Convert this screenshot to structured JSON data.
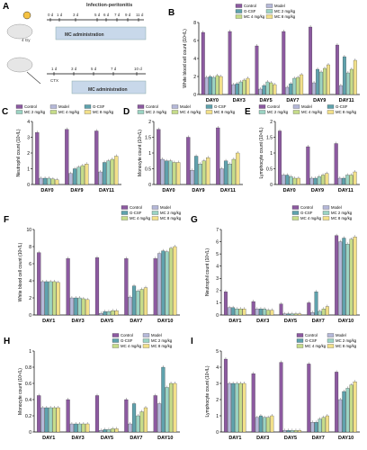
{
  "colors": {
    "control": "#8c5aa0",
    "model": "#b5b8d8",
    "gcsf": "#5fa2ad",
    "mc2": "#9bd3c3",
    "mc4": "#c6dc8a",
    "mc8": "#f2e08a",
    "red_text": "#e23a2c",
    "axis": "#000000",
    "mouse": "#e6e6e6",
    "cage": "#c8d8ea"
  },
  "groups": [
    "Control",
    "Model",
    "G-CSF",
    "MC 2 mg/kg",
    "MC 4 mg/kg",
    "MC 8 mg/kg"
  ],
  "schematic": {
    "title": "Infection-peritonitis",
    "dose_top": "4 Gy",
    "cage_text_top": "MC administration",
    "cage_text_bottom": "MC administration",
    "cs_label": "CTX",
    "top_days": [
      "0 d",
      "1 d",
      "3 d",
      "5 d",
      "6 d",
      "7 d",
      "9 d",
      "11 d"
    ],
    "bottom_days": [
      "1 d",
      "3 d",
      "5 d",
      "7 d",
      "10 d"
    ]
  },
  "chart_data": [
    {
      "panel": "A",
      "type": "diagram"
    },
    {
      "panel": "B",
      "type": "bar",
      "ylabel": "White blood cell count (10⁹/L)",
      "categories": [
        "DAY0",
        "DAY3",
        "DAY5",
        "DAY7",
        "DAY9",
        "DAY11"
      ],
      "yticks": [
        0,
        2,
        4,
        6,
        8
      ],
      "ylim": [
        0,
        8
      ],
      "series": [
        {
          "name": "Control",
          "values": [
            6.9,
            7.0,
            5.4,
            7.0,
            7.5,
            5.5
          ]
        },
        {
          "name": "Model",
          "values": [
            1.9,
            1.1,
            0.6,
            0.8,
            1.3,
            1.0
          ]
        },
        {
          "name": "G-CSF",
          "values": [
            2.0,
            1.2,
            1.0,
            1.2,
            2.8,
            4.2
          ]
        },
        {
          "name": "MC 2 mg/kg",
          "values": [
            1.9,
            1.4,
            1.4,
            1.8,
            2.5,
            2.4
          ]
        },
        {
          "name": "MC 4 mg/kg",
          "values": [
            2.1,
            1.6,
            1.3,
            1.9,
            2.9,
            2.8
          ]
        },
        {
          "name": "MC 8 mg/kg",
          "values": [
            2.0,
            1.8,
            1.1,
            2.2,
            3.3,
            3.8
          ]
        }
      ]
    },
    {
      "panel": "C",
      "type": "bar",
      "ylabel": "Neutrophil count (10⁹/L)",
      "categories": [
        "DAY0",
        "DAY9",
        "DAY11"
      ],
      "yticks": [
        0,
        1,
        2,
        3,
        4
      ],
      "ylim": [
        0,
        4
      ],
      "series": [
        {
          "name": "Control",
          "values": [
            3.3,
            3.5,
            3.4
          ]
        },
        {
          "name": "Model",
          "values": [
            0.4,
            0.7,
            0.8
          ]
        },
        {
          "name": "G-CSF",
          "values": [
            0.4,
            1.0,
            1.4
          ]
        },
        {
          "name": "MC 2 mg/kg",
          "values": [
            0.4,
            1.1,
            1.5
          ]
        },
        {
          "name": "MC 4 mg/kg",
          "values": [
            0.35,
            1.2,
            1.6
          ]
        },
        {
          "name": "MC 8 mg/kg",
          "values": [
            0.3,
            1.3,
            1.8
          ]
        }
      ]
    },
    {
      "panel": "D",
      "type": "bar",
      "ylabel": "Monocyte count (10⁹/L)",
      "categories": [
        "DAY0",
        "DAY9",
        "DAY11"
      ],
      "yticks": [
        0.0,
        0.5,
        1.0,
        1.5,
        2.0
      ],
      "ylim": [
        0,
        2
      ],
      "series": [
        {
          "name": "Control",
          "values": [
            1.75,
            1.5,
            1.8
          ]
        },
        {
          "name": "Model",
          "values": [
            0.8,
            0.45,
            0.5
          ]
        },
        {
          "name": "G-CSF",
          "values": [
            0.75,
            0.9,
            0.75
          ]
        },
        {
          "name": "MC 2 mg/kg",
          "values": [
            0.75,
            0.65,
            0.65
          ]
        },
        {
          "name": "MC 4 mg/kg",
          "values": [
            0.7,
            0.75,
            0.8
          ]
        },
        {
          "name": "MC 8 mg/kg",
          "values": [
            0.7,
            0.85,
            1.0
          ]
        }
      ]
    },
    {
      "panel": "E",
      "type": "bar",
      "ylabel": "Lymphocyte count (10⁹/L)",
      "categories": [
        "DAY0",
        "DAY9",
        "DAY11"
      ],
      "yticks": [
        0.0,
        0.5,
        1.0,
        1.5,
        2.0
      ],
      "ylim": [
        0,
        2
      ],
      "series": [
        {
          "name": "Control",
          "values": [
            1.7,
            1.2,
            1.3
          ]
        },
        {
          "name": "Model",
          "values": [
            0.3,
            0.2,
            0.2
          ]
        },
        {
          "name": "G-CSF",
          "values": [
            0.3,
            0.2,
            0.2
          ]
        },
        {
          "name": "MC 2 mg/kg",
          "values": [
            0.25,
            0.25,
            0.3
          ]
        },
        {
          "name": "MC 4 mg/kg",
          "values": [
            0.2,
            0.3,
            0.3
          ]
        },
        {
          "name": "MC 8 mg/kg",
          "values": [
            0.2,
            0.35,
            0.4
          ]
        }
      ]
    },
    {
      "panel": "F",
      "type": "bar",
      "ylabel": "White blood cell count (10⁹/L)",
      "categories": [
        "DAY1",
        "DAY3",
        "DAY5",
        "DAY7",
        "DAY10"
      ],
      "yticks": [
        0,
        2,
        4,
        6,
        8,
        10
      ],
      "ylim": [
        0,
        10
      ],
      "series": [
        {
          "name": "Control",
          "values": [
            7.3,
            6.6,
            6.7,
            6.6,
            6.6
          ]
        },
        {
          "name": "Model",
          "values": [
            3.9,
            2.0,
            0.2,
            2.1,
            7.2
          ]
        },
        {
          "name": "G-CSF",
          "values": [
            3.9,
            2.0,
            0.4,
            3.4,
            7.5
          ]
        },
        {
          "name": "MC 2 mg/kg",
          "values": [
            3.9,
            2.0,
            0.4,
            2.8,
            7.4
          ]
        },
        {
          "name": "MC 4 mg/kg",
          "values": [
            3.9,
            1.9,
            0.5,
            3.0,
            7.8
          ]
        },
        {
          "name": "MC 8 mg/kg",
          "values": [
            3.8,
            1.8,
            0.5,
            3.2,
            8.0
          ]
        }
      ]
    },
    {
      "panel": "G",
      "type": "bar",
      "ylabel": "Neutrophil count (10⁹/L)",
      "categories": [
        "DAY1",
        "DAY3",
        "DAY5",
        "DAY7",
        "DAY10"
      ],
      "yticks": [
        0,
        1,
        2,
        3,
        4,
        5,
        6,
        7
      ],
      "ylim": [
        0,
        7
      ],
      "series": [
        {
          "name": "Control",
          "values": [
            1.9,
            1.1,
            0.9,
            1.0,
            6.5
          ]
        },
        {
          "name": "Model",
          "values": [
            0.6,
            0.5,
            0.1,
            0.2,
            6.0
          ]
        },
        {
          "name": "G-CSF",
          "values": [
            0.6,
            0.5,
            0.1,
            1.9,
            6.3
          ]
        },
        {
          "name": "MC 2 mg/kg",
          "values": [
            0.5,
            0.5,
            0.1,
            0.3,
            5.8
          ]
        },
        {
          "name": "MC 4 mg/kg",
          "values": [
            0.5,
            0.4,
            0.1,
            0.5,
            6.2
          ]
        },
        {
          "name": "MC 8 mg/kg",
          "values": [
            0.5,
            0.4,
            0.1,
            0.7,
            6.4
          ]
        }
      ]
    },
    {
      "panel": "H",
      "type": "bar",
      "ylabel": "Monocyte count (10⁹/L)",
      "categories": [
        "DAY1",
        "DAY3",
        "DAY5",
        "DAY7",
        "DAY10"
      ],
      "yticks": [
        0.0,
        0.2,
        0.4,
        0.6,
        0.8,
        1.0
      ],
      "ylim": [
        0,
        1
      ],
      "series": [
        {
          "name": "Control",
          "values": [
            0.45,
            0.4,
            0.45,
            0.4,
            0.45
          ]
        },
        {
          "name": "Model",
          "values": [
            0.3,
            0.1,
            0.02,
            0.1,
            0.35
          ]
        },
        {
          "name": "G-CSF",
          "values": [
            0.3,
            0.1,
            0.03,
            0.35,
            0.8
          ]
        },
        {
          "name": "MC 2 mg/kg",
          "values": [
            0.3,
            0.1,
            0.03,
            0.2,
            0.55
          ]
        },
        {
          "name": "MC 4 mg/kg",
          "values": [
            0.3,
            0.1,
            0.04,
            0.25,
            0.6
          ]
        },
        {
          "name": "MC 8 mg/kg",
          "values": [
            0.3,
            0.1,
            0.04,
            0.3,
            0.6
          ]
        }
      ]
    },
    {
      "panel": "I",
      "type": "bar",
      "ylabel": "Lymphocyte count (10⁹/L)",
      "categories": [
        "DAY1",
        "DAY3",
        "DAY5",
        "DAY7",
        "DAY10"
      ],
      "yticks": [
        0,
        1,
        2,
        3,
        4,
        5
      ],
      "ylim": [
        0,
        5
      ],
      "series": [
        {
          "name": "Control",
          "values": [
            4.5,
            3.6,
            4.3,
            4.2,
            3.7
          ]
        },
        {
          "name": "Model",
          "values": [
            3.0,
            0.9,
            0.1,
            0.6,
            2.0
          ]
        },
        {
          "name": "G-CSF",
          "values": [
            3.0,
            1.0,
            0.1,
            0.6,
            2.5
          ]
        },
        {
          "name": "MC 2 mg/kg",
          "values": [
            3.0,
            0.9,
            0.1,
            0.8,
            2.7
          ]
        },
        {
          "name": "MC 4 mg/kg",
          "values": [
            3.0,
            0.9,
            0.1,
            0.9,
            2.9
          ]
        },
        {
          "name": "MC 8 mg/kg",
          "values": [
            3.0,
            1.0,
            0.1,
            1.0,
            3.1
          ]
        }
      ]
    }
  ]
}
